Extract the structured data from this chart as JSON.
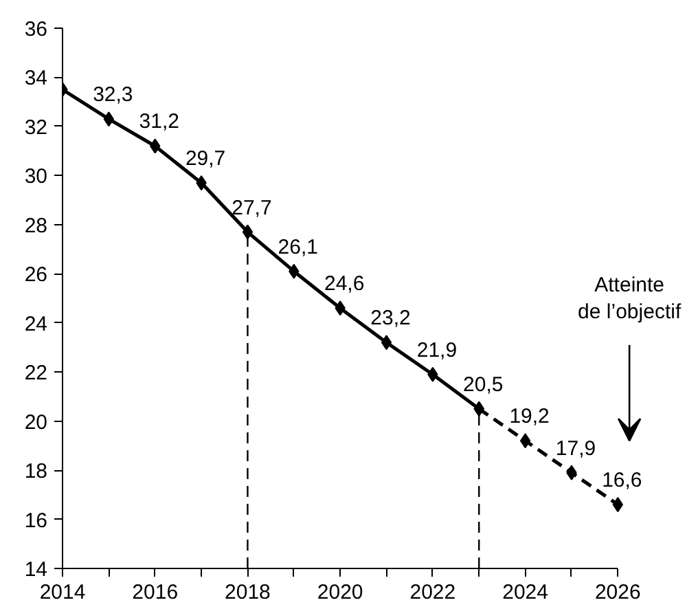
{
  "chart_data": {
    "type": "line",
    "xlim": [
      2014,
      2026
    ],
    "ylim": [
      14,
      36
    ],
    "xticks": [
      2014,
      {
        "value": 2015,
        "label": null
      },
      2016,
      {
        "value": 2017,
        "label": null
      },
      2018,
      {
        "value": 2019,
        "label": null
      },
      2020,
      {
        "value": 2021,
        "label": null
      },
      2022,
      {
        "value": 2023,
        "label": null
      },
      2024,
      {
        "value": 2025,
        "label": null
      },
      2026
    ],
    "yticks": [
      14,
      16,
      18,
      20,
      22,
      24,
      26,
      28,
      30,
      32,
      34,
      36
    ],
    "grid": false,
    "marker": "diamond",
    "series": [
      {
        "color": "#000000",
        "line_style": "solid",
        "x": [
          2014,
          2015,
          2016,
          2017,
          2018,
          2019,
          2020,
          2021,
          2022,
          2023
        ],
        "values": [
          33.5,
          32.3,
          31.2,
          29.7,
          27.7,
          26.1,
          24.6,
          23.2,
          21.9,
          20.5
        ],
        "value_labels": [
          null,
          "32,3",
          "31,2",
          "29,7",
          "27,7",
          "26,1",
          "24,6",
          "23,2",
          "21,9",
          "20,5"
        ]
      },
      {
        "color": "#000000",
        "line_style": "dashed",
        "x": [
          2023,
          2024,
          2025,
          2026
        ],
        "values": [
          20.5,
          19.2,
          17.9,
          16.6
        ],
        "value_labels": [
          null,
          "19,2",
          "17,9",
          "16,6"
        ]
      }
    ],
    "ref_lines": [
      {
        "axis": "x",
        "value": 2018,
        "line_style": "dashed",
        "color": "#000000"
      },
      {
        "axis": "x",
        "value": 2023,
        "line_style": "dashed",
        "color": "#000000"
      }
    ],
    "annotations": [
      "Atteinte\nde l’objectif"
    ]
  }
}
